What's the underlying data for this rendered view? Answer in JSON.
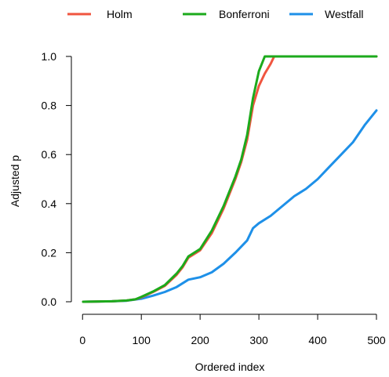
{
  "chart_data": {
    "type": "line",
    "xlabel": "Ordered index",
    "ylabel": "Adjusted p",
    "xlim": [
      1,
      500
    ],
    "ylim": [
      0,
      1
    ],
    "x_ticks": [
      0,
      100,
      200,
      300,
      400,
      500
    ],
    "y_ticks": [
      0.0,
      0.2,
      0.4,
      0.6,
      0.8,
      1.0
    ],
    "x_tick_labels": [
      "0",
      "100",
      "200",
      "300",
      "400",
      "500"
    ],
    "y_tick_labels": [
      "0.0",
      "0.2",
      "0.4",
      "0.6",
      "0.8",
      "1.0"
    ],
    "legend": "top",
    "grid": false,
    "series": [
      {
        "name": "Holm",
        "color": "#F0553F",
        "x": [
          1,
          50,
          75,
          90,
          100,
          120,
          140,
          160,
          170,
          180,
          200,
          220,
          240,
          260,
          270,
          280,
          290,
          300,
          310,
          320,
          326,
          330,
          400,
          500
        ],
        "y": [
          0.0,
          0.002,
          0.005,
          0.01,
          0.018,
          0.04,
          0.065,
          0.11,
          0.14,
          0.18,
          0.21,
          0.28,
          0.38,
          0.5,
          0.57,
          0.66,
          0.8,
          0.88,
          0.93,
          0.97,
          1.0,
          1.0,
          1.0,
          1.0
        ]
      },
      {
        "name": "Bonferroni",
        "color": "#1CAA1C",
        "x": [
          1,
          50,
          75,
          90,
          100,
          120,
          140,
          160,
          170,
          180,
          200,
          220,
          240,
          260,
          270,
          280,
          290,
          300,
          310,
          320,
          326,
          330,
          400,
          500
        ],
        "y": [
          0.0,
          0.002,
          0.005,
          0.01,
          0.02,
          0.042,
          0.068,
          0.115,
          0.145,
          0.185,
          0.215,
          0.29,
          0.39,
          0.51,
          0.58,
          0.68,
          0.83,
          0.94,
          1.0,
          1.0,
          1.0,
          1.0,
          1.0,
          1.0
        ]
      },
      {
        "name": "Westfall",
        "color": "#1E90E8",
        "x": [
          1,
          50,
          75,
          100,
          120,
          140,
          160,
          180,
          200,
          220,
          240,
          260,
          280,
          290,
          300,
          320,
          340,
          360,
          380,
          400,
          420,
          440,
          460,
          480,
          500
        ],
        "y": [
          0.0,
          0.002,
          0.004,
          0.012,
          0.025,
          0.04,
          0.06,
          0.09,
          0.1,
          0.12,
          0.155,
          0.2,
          0.25,
          0.3,
          0.32,
          0.35,
          0.39,
          0.43,
          0.46,
          0.5,
          0.55,
          0.6,
          0.65,
          0.72,
          0.78
        ]
      }
    ]
  }
}
